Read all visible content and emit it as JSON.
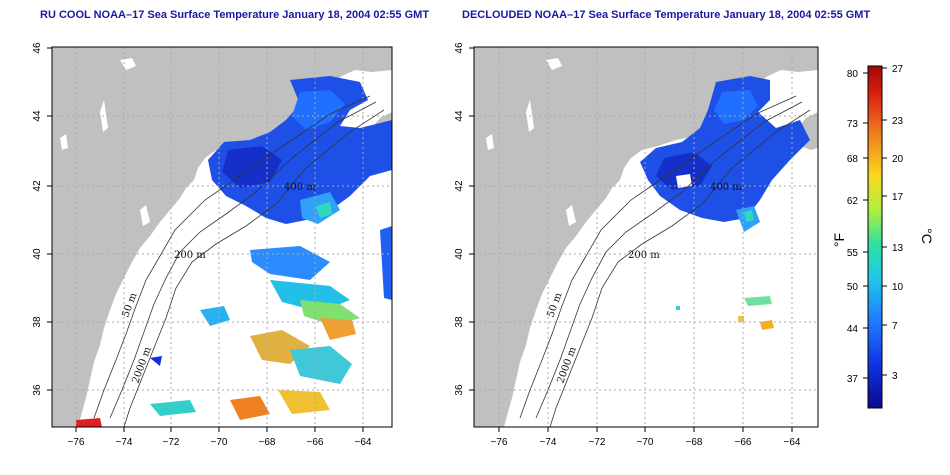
{
  "panels": [
    {
      "title": "RU COOL NOAA–17 Sea Surface Temperature January 18, 2004 02:55 GMT",
      "contour_labels": [
        "200 m",
        "50 m",
        "2000 m",
        "400 m"
      ]
    },
    {
      "title": "DECLOUDED NOAA–17 Sea Surface Temperature January 18, 2004 02:55 GMT",
      "contour_labels": [
        "200 m",
        "50 m",
        "2000 m",
        "400 m"
      ]
    }
  ],
  "axes": {
    "lon_ticks": [
      "−76",
      "−74",
      "−72",
      "−70",
      "−68",
      "−66",
      "−64"
    ],
    "lat_ticks": [
      "36",
      "38",
      "40",
      "42",
      "44",
      "46"
    ]
  },
  "colorbar": {
    "fahrenheit_ticks": [
      "80",
      "73",
      "68",
      "62",
      "55",
      "50",
      "44",
      "37"
    ],
    "celsius_ticks": [
      "27",
      "23",
      "20",
      "17",
      "13",
      "10",
      "7",
      "3"
    ],
    "fahrenheit_unit": "°F",
    "celsius_unit": "°C",
    "colors": [
      "#0a0a8c",
      "#1030e0",
      "#1e78ff",
      "#20c8e8",
      "#30e0a0",
      "#b0f040",
      "#f8d820",
      "#f08020",
      "#d82010",
      "#a00808"
    ]
  },
  "colors": {
    "land": "#c0c0c0",
    "ocean": "#ffffff",
    "title": "#1a1aa0",
    "grid": "#aaaaaa"
  }
}
